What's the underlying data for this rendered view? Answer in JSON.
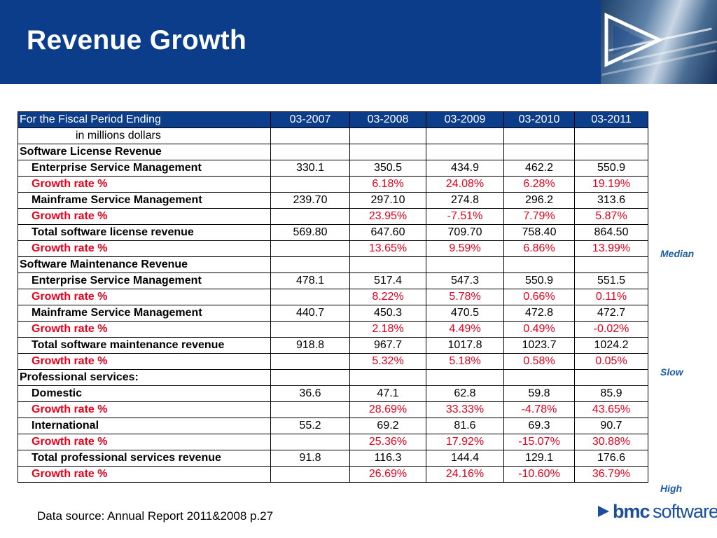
{
  "header": {
    "title": "Revenue Growth"
  },
  "table": {
    "columns": [
      "For the Fiscal Period Ending",
      "03-2007",
      "03-2008",
      "03-2009",
      "03-2010",
      "03-2011"
    ],
    "rows": [
      {
        "type": "unit",
        "label": "in millions dollars",
        "values": [
          "",
          "",
          "",
          "",
          ""
        ]
      },
      {
        "type": "section",
        "label": "Software License Revenue",
        "values": [
          "",
          "",
          "",
          "",
          ""
        ]
      },
      {
        "type": "item",
        "label": "Enterprise Service Management",
        "values": [
          "330.1",
          "350.5",
          "434.9",
          "462.2",
          "550.9"
        ]
      },
      {
        "type": "growth",
        "label": "Growth rate %",
        "values": [
          "",
          "6.18%",
          "24.08%",
          "6.28%",
          "19.19%"
        ]
      },
      {
        "type": "item",
        "label": "Mainframe Service Management",
        "values": [
          "239.70",
          "297.10",
          "274.8",
          "296.2",
          "313.6"
        ]
      },
      {
        "type": "growth",
        "label": "Growth rate %",
        "values": [
          "",
          "23.95%",
          "-7.51%",
          "7.79%",
          "5.87%"
        ]
      },
      {
        "type": "item",
        "label": "Total software license revenue",
        "values": [
          "569.80",
          "647.60",
          "709.70",
          "758.40",
          "864.50"
        ]
      },
      {
        "type": "growth",
        "label": "Growth rate %",
        "values": [
          "",
          "13.65%",
          "9.59%",
          "6.86%",
          "13.99%"
        ]
      },
      {
        "type": "section",
        "label": "Software Maintenance Revenue",
        "values": [
          "",
          "",
          "",
          "",
          ""
        ]
      },
      {
        "type": "item",
        "label": "Enterprise Service Management",
        "values": [
          "478.1",
          "517.4",
          "547.3",
          "550.9",
          "551.5"
        ]
      },
      {
        "type": "growth",
        "label": "Growth rate %",
        "values": [
          "",
          "8.22%",
          "5.78%",
          "0.66%",
          "0.11%"
        ]
      },
      {
        "type": "item",
        "label": "Mainframe Service Management",
        "values": [
          "440.7",
          "450.3",
          "470.5",
          "472.8",
          "472.7"
        ]
      },
      {
        "type": "growth",
        "label": "Growth rate %",
        "values": [
          "",
          "2.18%",
          "4.49%",
          "0.49%",
          "-0.02%"
        ]
      },
      {
        "type": "item",
        "label": "Total software maintenance revenue",
        "values": [
          "918.8",
          "967.7",
          "1017.8",
          "1023.7",
          "1024.2"
        ]
      },
      {
        "type": "growth",
        "label": "Growth rate %",
        "values": [
          "",
          "5.32%",
          "5.18%",
          "0.58%",
          "0.05%"
        ]
      },
      {
        "type": "section",
        "label": "Professional services:",
        "values": [
          "",
          "",
          "",
          "",
          ""
        ]
      },
      {
        "type": "item",
        "label": "Domestic",
        "values": [
          "36.6",
          "47.1",
          "62.8",
          "59.8",
          "85.9"
        ]
      },
      {
        "type": "growth",
        "label": "Growth rate %",
        "values": [
          "",
          "28.69%",
          "33.33%",
          "-4.78%",
          "43.65%"
        ]
      },
      {
        "type": "item",
        "label": "International",
        "values": [
          "55.2",
          "69.2",
          "81.6",
          "69.3",
          "90.7"
        ]
      },
      {
        "type": "growth",
        "label": "Growth rate %",
        "values": [
          "",
          "25.36%",
          "17.92%",
          "-15.07%",
          "30.88%"
        ]
      },
      {
        "type": "item",
        "label": "Total professional services revenue",
        "values": [
          "91.8",
          "116.3",
          "144.4",
          "129.1",
          "176.6"
        ]
      },
      {
        "type": "growth",
        "label": "Growth rate %",
        "values": [
          "",
          "26.69%",
          "24.16%",
          "-10.60%",
          "36.79%"
        ]
      }
    ]
  },
  "annotations": {
    "median": "Median",
    "slow": "Slow",
    "high": "High"
  },
  "footer": {
    "source": "Data source: Annual Report 2011&2008 p.27",
    "logo_text_bold": "bmc",
    "logo_text_light": "software"
  },
  "colors": {
    "header_bg": "#0b3d8a",
    "growth_red": "#e8001c",
    "annotation_blue": "#1b5ea6"
  }
}
